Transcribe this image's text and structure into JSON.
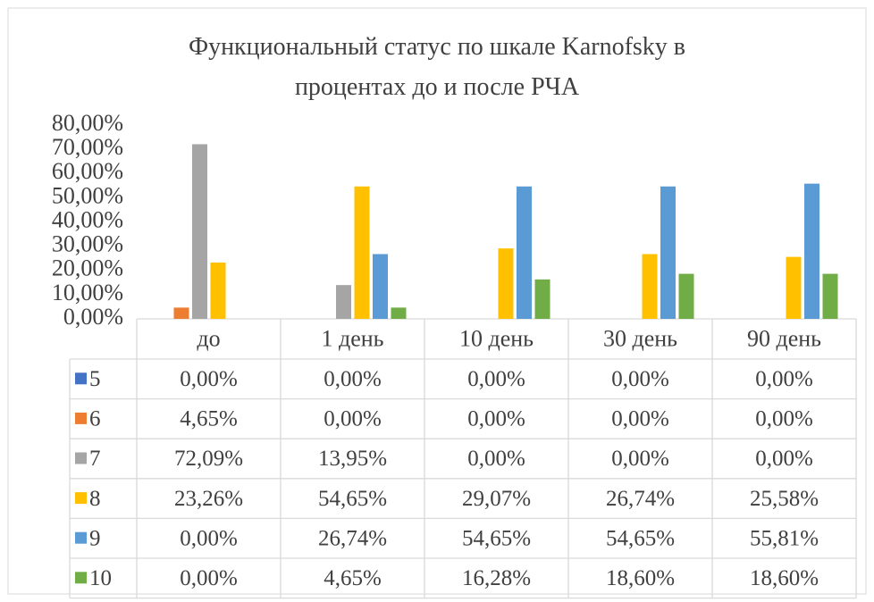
{
  "chart_data": {
    "type": "bar",
    "title": "Функциональный статус по шкале Karnofsky в процентах до и после РЧА",
    "categories": [
      "до",
      "1 день",
      "10 день",
      "30 день",
      "90 день"
    ],
    "series": [
      {
        "name": "5",
        "color": "#4472c4",
        "values": [
          0,
          0,
          0,
          0,
          0
        ],
        "value_labels": [
          "0,00%",
          "0,00%",
          "0,00%",
          "0,00%",
          "0,00%"
        ]
      },
      {
        "name": "6",
        "color": "#ed7d31",
        "values": [
          4.65,
          0,
          0,
          0,
          0
        ],
        "value_labels": [
          "4,65%",
          "0,00%",
          "0,00%",
          "0,00%",
          "0,00%"
        ]
      },
      {
        "name": "7",
        "color": "#a5a5a5",
        "values": [
          72.09,
          13.95,
          0,
          0,
          0
        ],
        "value_labels": [
          "72,09%",
          "13,95%",
          "0,00%",
          "0,00%",
          "0,00%"
        ]
      },
      {
        "name": "8",
        "color": "#ffc000",
        "values": [
          23.26,
          54.65,
          29.07,
          26.74,
          25.58
        ],
        "value_labels": [
          "23,26%",
          "54,65%",
          "29,07%",
          "26,74%",
          "25,58%"
        ]
      },
      {
        "name": "9",
        "color": "#5b9bd5",
        "values": [
          0,
          26.74,
          54.65,
          54.65,
          55.81
        ],
        "value_labels": [
          "0,00%",
          "26,74%",
          "54,65%",
          "54,65%",
          "55,81%"
        ]
      },
      {
        "name": "10",
        "color": "#70ad47",
        "values": [
          0,
          4.65,
          16.28,
          18.6,
          18.6
        ],
        "value_labels": [
          "0,00%",
          "4,65%",
          "16,28%",
          "18,60%",
          "18,60%"
        ]
      }
    ],
    "ylim": [
      0,
      80
    ],
    "yticks": [
      {
        "value": 0,
        "label": "0,00%"
      },
      {
        "value": 10,
        "label": "10,00%"
      },
      {
        "value": 20,
        "label": "20,00%"
      },
      {
        "value": 30,
        "label": "30,00%"
      },
      {
        "value": 40,
        "label": "40,00%"
      },
      {
        "value": 50,
        "label": "50,00%"
      },
      {
        "value": 60,
        "label": "60,00%"
      },
      {
        "value": 70,
        "label": "70,00%"
      },
      {
        "value": 80,
        "label": "80,00%"
      }
    ],
    "grid": false
  }
}
